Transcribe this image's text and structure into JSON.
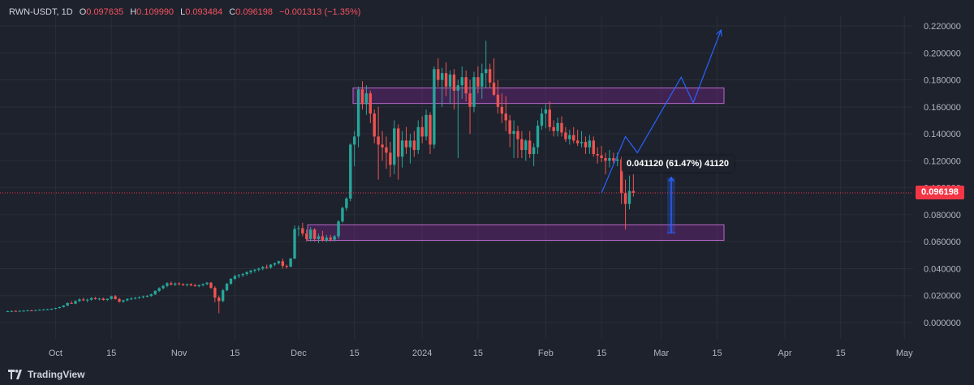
{
  "header": {
    "symbol": "RWN-USDT, 1D",
    "open_label": "O",
    "open": "0.097635",
    "high_label": "H",
    "high": "0.109990",
    "low_label": "L",
    "low": "0.093484",
    "close_label": "C",
    "close": "0.096198",
    "change": "−0.001313 (−1.35%)"
  },
  "price_badge": "0.096198",
  "measure_label": "0.041120 (61.47%) 41120",
  "brand": {
    "name": "TradingView",
    "logo_icon": "tradingview-logo-icon"
  },
  "colors": {
    "background": "#1e222d",
    "up": "#26a69a",
    "down": "#ef5350",
    "zone": "#9c27b0",
    "projection": "#2962ff",
    "price_line": "#f23645"
  },
  "chart_data": {
    "type": "candlestick",
    "symbol": "RWN-USDT",
    "interval": "1D",
    "ylim": [
      -0.016,
      0.224
    ],
    "y_ticks": [
      "0.220000",
      "0.200000",
      "0.180000",
      "0.160000",
      "0.140000",
      "0.120000",
      "0.100000",
      "0.080000",
      "0.060000",
      "0.040000",
      "0.020000",
      "0.000000"
    ],
    "x_ticks": [
      "Oct",
      "15",
      "Nov",
      "15",
      "Dec",
      "15",
      "2024",
      "15",
      "Feb",
      "15",
      "Mar",
      "15",
      "Apr",
      "15",
      "May"
    ],
    "candles": [
      [
        0.0082,
        0.0088,
        0.0078,
        0.0084
      ],
      [
        0.0084,
        0.009,
        0.008,
        0.0086
      ],
      [
        0.0086,
        0.0091,
        0.0082,
        0.0085
      ],
      [
        0.0085,
        0.009,
        0.0081,
        0.0087
      ],
      [
        0.0087,
        0.0092,
        0.0083,
        0.0088
      ],
      [
        0.0088,
        0.0094,
        0.0085,
        0.009
      ],
      [
        0.009,
        0.0095,
        0.0086,
        0.0089
      ],
      [
        0.0089,
        0.0096,
        0.0086,
        0.0093
      ],
      [
        0.0093,
        0.0099,
        0.0089,
        0.0095
      ],
      [
        0.0095,
        0.0101,
        0.0091,
        0.0097
      ],
      [
        0.0097,
        0.0103,
        0.0093,
        0.0099
      ],
      [
        0.0099,
        0.0105,
        0.0095,
        0.0102
      ],
      [
        0.0102,
        0.011,
        0.0098,
        0.0108
      ],
      [
        0.0108,
        0.0118,
        0.0104,
        0.0115
      ],
      [
        0.0115,
        0.013,
        0.0112,
        0.0126
      ],
      [
        0.0126,
        0.015,
        0.0122,
        0.0145
      ],
      [
        0.0145,
        0.016,
        0.0138,
        0.014
      ],
      [
        0.014,
        0.0165,
        0.0136,
        0.016
      ],
      [
        0.016,
        0.018,
        0.0152,
        0.0172
      ],
      [
        0.0172,
        0.0185,
        0.016,
        0.0165
      ],
      [
        0.0165,
        0.0178,
        0.015,
        0.017
      ],
      [
        0.017,
        0.0188,
        0.0163,
        0.0182
      ],
      [
        0.0182,
        0.019,
        0.017,
        0.0175
      ],
      [
        0.0175,
        0.0183,
        0.0165,
        0.0178
      ],
      [
        0.0178,
        0.0185,
        0.0163,
        0.0168
      ],
      [
        0.0168,
        0.018,
        0.016,
        0.0176
      ],
      [
        0.0176,
        0.02,
        0.017,
        0.0195
      ],
      [
        0.0195,
        0.0205,
        0.017,
        0.0175
      ],
      [
        0.0175,
        0.0183,
        0.0148,
        0.0155
      ],
      [
        0.0155,
        0.017,
        0.0148,
        0.0165
      ],
      [
        0.0165,
        0.018,
        0.0158,
        0.0176
      ],
      [
        0.0176,
        0.0188,
        0.0168,
        0.0178
      ],
      [
        0.0178,
        0.019,
        0.0172,
        0.0183
      ],
      [
        0.0183,
        0.0195,
        0.0176,
        0.0188
      ],
      [
        0.0188,
        0.02,
        0.018,
        0.0194
      ],
      [
        0.0194,
        0.0205,
        0.0186,
        0.0198
      ],
      [
        0.0198,
        0.0215,
        0.019,
        0.021
      ],
      [
        0.021,
        0.024,
        0.0204,
        0.0235
      ],
      [
        0.0235,
        0.0262,
        0.0226,
        0.0255
      ],
      [
        0.0255,
        0.028,
        0.0245,
        0.0272
      ],
      [
        0.0272,
        0.03,
        0.0262,
        0.0292
      ],
      [
        0.0292,
        0.0305,
        0.0275,
        0.0282
      ],
      [
        0.0282,
        0.0298,
        0.027,
        0.029
      ],
      [
        0.029,
        0.03,
        0.0276,
        0.0284
      ],
      [
        0.0284,
        0.0292,
        0.0272,
        0.0278
      ],
      [
        0.0278,
        0.029,
        0.0268,
        0.0284
      ],
      [
        0.0284,
        0.0292,
        0.027,
        0.0276
      ],
      [
        0.0276,
        0.0288,
        0.0265,
        0.027
      ],
      [
        0.027,
        0.0282,
        0.0262,
        0.0278
      ],
      [
        0.0278,
        0.029,
        0.0268,
        0.0286
      ],
      [
        0.0286,
        0.0302,
        0.0276,
        0.0296
      ],
      [
        0.0296,
        0.0302,
        0.025,
        0.0258
      ],
      [
        0.0258,
        0.027,
        0.015,
        0.0185
      ],
      [
        0.0185,
        0.02,
        0.007,
        0.016
      ],
      [
        0.016,
        0.025,
        0.015,
        0.024
      ],
      [
        0.024,
        0.0295,
        0.0232,
        0.0288
      ],
      [
        0.0288,
        0.033,
        0.028,
        0.0325
      ],
      [
        0.0325,
        0.0355,
        0.0315,
        0.0345
      ],
      [
        0.0345,
        0.036,
        0.033,
        0.0352
      ],
      [
        0.0352,
        0.0368,
        0.0338,
        0.036
      ],
      [
        0.036,
        0.038,
        0.0348,
        0.0374
      ],
      [
        0.0374,
        0.0392,
        0.036,
        0.0385
      ],
      [
        0.0385,
        0.0398,
        0.037,
        0.0392
      ],
      [
        0.0392,
        0.0408,
        0.038,
        0.04
      ],
      [
        0.04,
        0.042,
        0.0388,
        0.0412
      ],
      [
        0.0412,
        0.043,
        0.0398,
        0.0408
      ],
      [
        0.0408,
        0.0435,
        0.04,
        0.043
      ],
      [
        0.043,
        0.0445,
        0.0418,
        0.044
      ],
      [
        0.044,
        0.046,
        0.043,
        0.0455
      ],
      [
        0.0455,
        0.0475,
        0.04,
        0.042
      ],
      [
        0.042,
        0.043,
        0.04,
        0.0415
      ],
      [
        0.0415,
        0.048,
        0.041,
        0.0475
      ],
      [
        0.0475,
        0.072,
        0.047,
        0.0695
      ],
      [
        0.0695,
        0.072,
        0.064,
        0.07
      ],
      [
        0.07,
        0.074,
        0.064,
        0.066
      ],
      [
        0.066,
        0.069,
        0.06,
        0.062
      ],
      [
        0.062,
        0.071,
        0.06,
        0.069
      ],
      [
        0.069,
        0.07,
        0.06,
        0.062
      ],
      [
        0.062,
        0.066,
        0.059,
        0.064
      ],
      [
        0.064,
        0.068,
        0.06,
        0.061
      ],
      [
        0.061,
        0.065,
        0.0595,
        0.063
      ],
      [
        0.063,
        0.065,
        0.06,
        0.0615
      ],
      [
        0.0615,
        0.065,
        0.06,
        0.064
      ],
      [
        0.064,
        0.076,
        0.062,
        0.075
      ],
      [
        0.075,
        0.086,
        0.074,
        0.085
      ],
      [
        0.085,
        0.093,
        0.083,
        0.092
      ],
      [
        0.092,
        0.133,
        0.09,
        0.132
      ],
      [
        0.132,
        0.142,
        0.116,
        0.138
      ],
      [
        0.138,
        0.175,
        0.13,
        0.173
      ],
      [
        0.173,
        0.179,
        0.158,
        0.162
      ],
      [
        0.162,
        0.176,
        0.154,
        0.17
      ],
      [
        0.17,
        0.172,
        0.148,
        0.155
      ],
      [
        0.155,
        0.158,
        0.133,
        0.138
      ],
      [
        0.138,
        0.16,
        0.106,
        0.132
      ],
      [
        0.132,
        0.142,
        0.12,
        0.13
      ],
      [
        0.13,
        0.138,
        0.114,
        0.126
      ],
      [
        0.126,
        0.134,
        0.108,
        0.117
      ],
      [
        0.117,
        0.15,
        0.11,
        0.144
      ],
      [
        0.144,
        0.147,
        0.106,
        0.123
      ],
      [
        0.123,
        0.142,
        0.115,
        0.135
      ],
      [
        0.135,
        0.145,
        0.125,
        0.13
      ],
      [
        0.13,
        0.14,
        0.118,
        0.135
      ],
      [
        0.135,
        0.142,
        0.123,
        0.128
      ],
      [
        0.128,
        0.15,
        0.125,
        0.145
      ],
      [
        0.145,
        0.153,
        0.133,
        0.138
      ],
      [
        0.138,
        0.158,
        0.135,
        0.154
      ],
      [
        0.154,
        0.156,
        0.125,
        0.132
      ],
      [
        0.132,
        0.19,
        0.129,
        0.188
      ],
      [
        0.188,
        0.196,
        0.175,
        0.18
      ],
      [
        0.18,
        0.189,
        0.16,
        0.185
      ],
      [
        0.185,
        0.193,
        0.168,
        0.175
      ],
      [
        0.175,
        0.187,
        0.162,
        0.184
      ],
      [
        0.184,
        0.188,
        0.158,
        0.172
      ],
      [
        0.172,
        0.18,
        0.122,
        0.176
      ],
      [
        0.176,
        0.19,
        0.166,
        0.182
      ],
      [
        0.182,
        0.187,
        0.164,
        0.17
      ],
      [
        0.17,
        0.18,
        0.14,
        0.16
      ],
      [
        0.16,
        0.186,
        0.156,
        0.182
      ],
      [
        0.182,
        0.19,
        0.17,
        0.175
      ],
      [
        0.175,
        0.192,
        0.166,
        0.185
      ],
      [
        0.185,
        0.209,
        0.174,
        0.188
      ],
      [
        0.188,
        0.192,
        0.174,
        0.178
      ],
      [
        0.178,
        0.196,
        0.168,
        0.169
      ],
      [
        0.169,
        0.18,
        0.155,
        0.16
      ],
      [
        0.16,
        0.17,
        0.148,
        0.155
      ],
      [
        0.155,
        0.168,
        0.142,
        0.15
      ],
      [
        0.15,
        0.154,
        0.13,
        0.14
      ],
      [
        0.14,
        0.15,
        0.122,
        0.142
      ],
      [
        0.142,
        0.146,
        0.122,
        0.136
      ],
      [
        0.136,
        0.142,
        0.122,
        0.128
      ],
      [
        0.128,
        0.136,
        0.12,
        0.135
      ],
      [
        0.135,
        0.142,
        0.122,
        0.125
      ],
      [
        0.125,
        0.133,
        0.116,
        0.13
      ],
      [
        0.13,
        0.15,
        0.125,
        0.146
      ],
      [
        0.146,
        0.159,
        0.143,
        0.155
      ],
      [
        0.155,
        0.162,
        0.144,
        0.158
      ],
      [
        0.158,
        0.164,
        0.142,
        0.145
      ],
      [
        0.145,
        0.15,
        0.138,
        0.142
      ],
      [
        0.142,
        0.152,
        0.138,
        0.148
      ],
      [
        0.148,
        0.153,
        0.138,
        0.141
      ],
      [
        0.141,
        0.145,
        0.134,
        0.136
      ],
      [
        0.136,
        0.143,
        0.132,
        0.139
      ],
      [
        0.139,
        0.145,
        0.133,
        0.135
      ],
      [
        0.135,
        0.143,
        0.131,
        0.133
      ],
      [
        0.133,
        0.142,
        0.13,
        0.134
      ],
      [
        0.134,
        0.138,
        0.125,
        0.13
      ],
      [
        0.13,
        0.139,
        0.125,
        0.135
      ],
      [
        0.135,
        0.138,
        0.123,
        0.125
      ],
      [
        0.125,
        0.13,
        0.118,
        0.124
      ],
      [
        0.124,
        0.131,
        0.119,
        0.122
      ],
      [
        0.122,
        0.126,
        0.11,
        0.12
      ],
      [
        0.12,
        0.128,
        0.115,
        0.122
      ],
      [
        0.122,
        0.126,
        0.118,
        0.12
      ],
      [
        0.12,
        0.126,
        0.116,
        0.121
      ],
      [
        0.121,
        0.123,
        0.088,
        0.096
      ],
      [
        0.096,
        0.106,
        0.069,
        0.088
      ],
      [
        0.088,
        0.109,
        0.084,
        0.0976
      ],
      [
        0.0976,
        0.11,
        0.0935,
        0.0962
      ]
    ],
    "resistance_zone": [
      0.1625,
      0.174
    ],
    "support_zone": [
      0.061,
      0.0725
    ],
    "current_price": 0.096198,
    "measure": {
      "from": 0.0665,
      "to": 0.1076,
      "label": "0.041120 (61.47%) 41120"
    },
    "projection_path": [
      [
        "2024-02-15",
        0.0962
      ],
      [
        "2024-02-21",
        0.138
      ],
      [
        "2024-02-24",
        0.126
      ],
      [
        "2024-03-06",
        0.182
      ],
      [
        "2024-03-09",
        0.163
      ],
      [
        "2024-03-16",
        0.217
      ]
    ],
    "grid": true
  }
}
